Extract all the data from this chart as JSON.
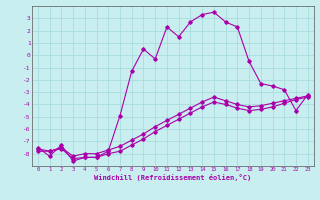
{
  "xlabel": "Windchill (Refroidissement éolien,°C)",
  "background_color": "#c8eef0",
  "grid_color": "#aadddd",
  "line_color": "#aa00aa",
  "hours": [
    0,
    1,
    2,
    3,
    4,
    5,
    6,
    7,
    8,
    9,
    10,
    11,
    12,
    13,
    14,
    15,
    16,
    17,
    18,
    19,
    20,
    21,
    22,
    23
  ],
  "series1": [
    -7.5,
    -8.2,
    -7.3,
    -8.6,
    -8.3,
    -8.3,
    -7.8,
    -4.9,
    -1.3,
    0.5,
    -0.3,
    2.3,
    1.5,
    2.7,
    3.3,
    3.5,
    2.7,
    2.3,
    -0.5,
    -2.3,
    -2.5,
    -2.8,
    -4.5,
    -3.2
  ],
  "series2": [
    -7.8,
    -7.8,
    -7.6,
    -8.4,
    -8.3,
    -8.3,
    -8.0,
    -7.8,
    -7.3,
    -6.8,
    -6.2,
    -5.7,
    -5.2,
    -4.7,
    -4.2,
    -3.8,
    -4.0,
    -4.3,
    -4.5,
    -4.4,
    -4.2,
    -3.9,
    -3.6,
    -3.4
  ],
  "series3": [
    -7.6,
    -7.8,
    -7.5,
    -8.2,
    -8.0,
    -8.0,
    -7.7,
    -7.4,
    -6.9,
    -6.4,
    -5.8,
    -5.3,
    -4.8,
    -4.3,
    -3.8,
    -3.4,
    -3.7,
    -4.0,
    -4.2,
    -4.1,
    -3.9,
    -3.7,
    -3.5,
    -3.3
  ],
  "ylim": [
    -9,
    4
  ],
  "xlim": [
    -0.5,
    23.5
  ],
  "yticks": [
    3,
    2,
    1,
    0,
    -1,
    -2,
    -3,
    -4,
    -5,
    -6,
    -7,
    -8
  ],
  "xticks": [
    0,
    1,
    2,
    3,
    4,
    5,
    6,
    7,
    8,
    9,
    10,
    11,
    12,
    13,
    14,
    15,
    16,
    17,
    18,
    19,
    20,
    21,
    22,
    23
  ]
}
